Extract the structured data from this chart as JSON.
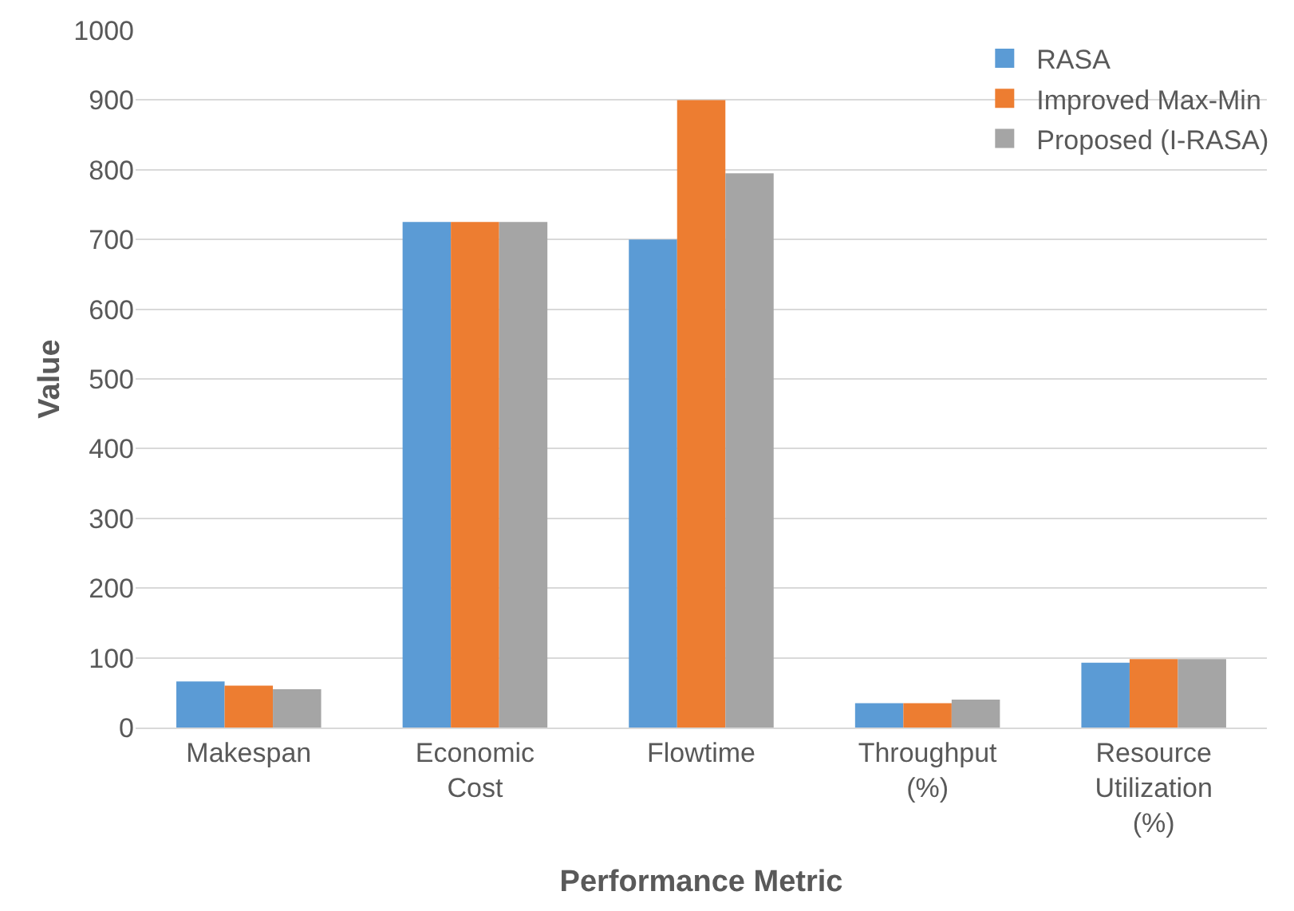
{
  "chart_data": {
    "type": "bar",
    "xlabel": "Performance Metric",
    "ylabel": "Value",
    "categories": [
      "Makespan",
      "Economic Cost",
      "Flowtime",
      "Throughput (%)",
      "Resource Utilization (%)"
    ],
    "series": [
      {
        "name": "RASA",
        "color": "#5b9bd5",
        "values": [
          66,
          725,
          700,
          35,
          93
        ]
      },
      {
        "name": "Improved Max-Min",
        "color": "#ed7d31",
        "values": [
          60,
          725,
          900,
          35,
          98
        ]
      },
      {
        "name": "Proposed (I-RASA)",
        "color": "#a5a5a5",
        "values": [
          55,
          725,
          795,
          40,
          98
        ]
      }
    ],
    "ylim": [
      0,
      1000
    ],
    "yticks": [
      0,
      100,
      200,
      300,
      400,
      500,
      600,
      700,
      800,
      900,
      1000
    ],
    "grid": "y",
    "legend": "top right"
  }
}
